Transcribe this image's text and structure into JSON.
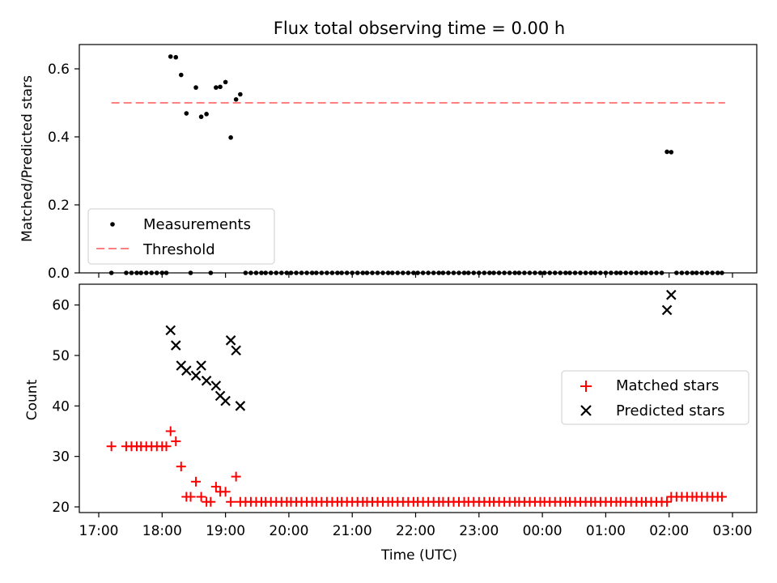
{
  "figure": {
    "title": "Flux total observing time = 0.00 h"
  },
  "chart_data": [
    {
      "type": "scatter",
      "title": "Flux total observing time = 0.00 h",
      "xlabel": "",
      "ylabel": "Matched/Predicted stars",
      "xlim": [
        "16:53",
        "03:22"
      ],
      "ylim": [
        0,
        0.66
      ],
      "yticks": [
        0.0,
        0.2,
        0.4,
        0.6
      ],
      "ytick_labels": [
        "0.0",
        "0.2",
        "0.4",
        "0.6"
      ],
      "legend": {
        "placement": "lower-left",
        "entries": [
          {
            "label": "Measurements",
            "marker": "dot",
            "color": "#000000"
          },
          {
            "label": "Threshold",
            "style": "dashed",
            "color": "#ff8080"
          }
        ]
      },
      "threshold": {
        "name": "Threshold",
        "value": 0.5,
        "x_start": "17:12",
        "x_end": "02:53",
        "color": "#ff8080"
      },
      "series": [
        {
          "name": "Measurements",
          "color": "#000000",
          "points": [
            {
              "x": "18:08",
              "y": 0.636
            },
            {
              "x": "18:13",
              "y": 0.634
            },
            {
              "x": "18:18",
              "y": 0.582
            },
            {
              "x": "18:23",
              "y": 0.469
            },
            {
              "x": "18:32",
              "y": 0.545
            },
            {
              "x": "18:37",
              "y": 0.459
            },
            {
              "x": "18:42",
              "y": 0.467
            },
            {
              "x": "18:51",
              "y": 0.545
            },
            {
              "x": "18:55",
              "y": 0.547
            },
            {
              "x": "19:00",
              "y": 0.561
            },
            {
              "x": "19:05",
              "y": 0.398
            },
            {
              "x": "19:10",
              "y": 0.51
            },
            {
              "x": "19:14",
              "y": 0.525
            },
            {
              "x": "01:58",
              "y": 0.356
            },
            {
              "x": "02:02",
              "y": 0.355
            }
          ],
          "zero_points_x": [
            "17:12",
            "17:26",
            "17:31",
            "17:36",
            "17:40",
            "17:45",
            "17:50",
            "17:55",
            "18:00",
            "18:04",
            "18:27",
            "18:46",
            "19:19",
            "19:24",
            "19:29",
            "19:34",
            "19:38",
            "19:43",
            "19:48",
            "19:53",
            "19:58",
            "20:02",
            "20:07",
            "20:12",
            "20:17",
            "20:22",
            "20:26",
            "20:31",
            "20:36",
            "20:41",
            "20:46",
            "20:50",
            "20:55",
            "21:00",
            "21:05",
            "21:10",
            "21:14",
            "21:19",
            "21:24",
            "21:29",
            "21:34",
            "21:38",
            "21:43",
            "21:48",
            "21:53",
            "21:58",
            "22:02",
            "22:07",
            "22:12",
            "22:17",
            "22:22",
            "22:26",
            "22:31",
            "22:36",
            "22:41",
            "22:46",
            "22:50",
            "22:55",
            "23:00",
            "23:05",
            "23:10",
            "23:14",
            "23:19",
            "23:24",
            "23:29",
            "23:34",
            "23:38",
            "23:43",
            "23:48",
            "23:53",
            "23:58",
            "00:02",
            "00:07",
            "00:12",
            "00:17",
            "00:22",
            "00:26",
            "00:31",
            "00:36",
            "00:41",
            "00:46",
            "00:50",
            "00:55",
            "01:00",
            "01:05",
            "01:10",
            "01:14",
            "01:19",
            "01:24",
            "01:29",
            "01:34",
            "01:38",
            "01:43",
            "01:48",
            "01:53",
            "02:07",
            "02:12",
            "02:17",
            "02:22",
            "02:26",
            "02:31",
            "02:36",
            "02:41",
            "02:46",
            "02:50"
          ]
        }
      ]
    },
    {
      "type": "scatter",
      "xlabel": "Time (UTC)",
      "ylabel": "Count",
      "xlim": [
        "16:53",
        "03:22"
      ],
      "ylim": [
        19,
        64
      ],
      "xticks": [
        "17:00",
        "18:00",
        "19:00",
        "20:00",
        "21:00",
        "22:00",
        "23:00",
        "00:00",
        "01:00",
        "02:00",
        "03:00"
      ],
      "yticks": [
        20,
        30,
        40,
        50,
        60
      ],
      "ytick_labels": [
        "20",
        "30",
        "40",
        "50",
        "60"
      ],
      "legend": {
        "placement": "center-right",
        "entries": [
          {
            "label": "Matched stars",
            "marker": "+",
            "color": "#ff0000"
          },
          {
            "label": "Predicted stars",
            "marker": "x",
            "color": "#000000"
          }
        ]
      },
      "series": [
        {
          "name": "Matched stars",
          "marker": "+",
          "color": "#ff0000",
          "points": [
            {
              "x": "17:12",
              "y": 32
            },
            {
              "x": "17:26",
              "y": 32
            },
            {
              "x": "17:31",
              "y": 32
            },
            {
              "x": "17:36",
              "y": 32
            },
            {
              "x": "17:40",
              "y": 32
            },
            {
              "x": "17:45",
              "y": 32
            },
            {
              "x": "17:50",
              "y": 32
            },
            {
              "x": "17:55",
              "y": 32
            },
            {
              "x": "18:00",
              "y": 32
            },
            {
              "x": "18:04",
              "y": 32
            },
            {
              "x": "18:08",
              "y": 35
            },
            {
              "x": "18:13",
              "y": 33
            },
            {
              "x": "18:18",
              "y": 28
            },
            {
              "x": "18:23",
              "y": 22
            },
            {
              "x": "18:27",
              "y": 22
            },
            {
              "x": "18:32",
              "y": 25
            },
            {
              "x": "18:37",
              "y": 22
            },
            {
              "x": "18:42",
              "y": 21
            },
            {
              "x": "18:46",
              "y": 21
            },
            {
              "x": "18:51",
              "y": 24
            },
            {
              "x": "18:55",
              "y": 23
            },
            {
              "x": "19:00",
              "y": 23
            },
            {
              "x": "19:05",
              "y": 21
            },
            {
              "x": "19:10",
              "y": 26
            },
            {
              "x": "19:14",
              "y": 21
            },
            {
              "x": "19:19",
              "y": 21
            },
            {
              "x": "19:24",
              "y": 21
            },
            {
              "x": "19:29",
              "y": 21
            },
            {
              "x": "19:34",
              "y": 21
            },
            {
              "x": "19:38",
              "y": 21
            },
            {
              "x": "19:43",
              "y": 21
            },
            {
              "x": "19:48",
              "y": 21
            },
            {
              "x": "19:53",
              "y": 21
            },
            {
              "x": "19:58",
              "y": 21
            },
            {
              "x": "20:02",
              "y": 21
            },
            {
              "x": "20:07",
              "y": 21
            },
            {
              "x": "20:12",
              "y": 21
            },
            {
              "x": "20:17",
              "y": 21
            },
            {
              "x": "20:22",
              "y": 21
            },
            {
              "x": "20:26",
              "y": 21
            },
            {
              "x": "20:31",
              "y": 21
            },
            {
              "x": "20:36",
              "y": 21
            },
            {
              "x": "20:41",
              "y": 21
            },
            {
              "x": "20:46",
              "y": 21
            },
            {
              "x": "20:50",
              "y": 21
            },
            {
              "x": "20:55",
              "y": 21
            },
            {
              "x": "21:00",
              "y": 21
            },
            {
              "x": "21:05",
              "y": 21
            },
            {
              "x": "21:10",
              "y": 21
            },
            {
              "x": "21:14",
              "y": 21
            },
            {
              "x": "21:19",
              "y": 21
            },
            {
              "x": "21:24",
              "y": 21
            },
            {
              "x": "21:29",
              "y": 21
            },
            {
              "x": "21:34",
              "y": 21
            },
            {
              "x": "21:38",
              "y": 21
            },
            {
              "x": "21:43",
              "y": 21
            },
            {
              "x": "21:48",
              "y": 21
            },
            {
              "x": "21:53",
              "y": 21
            },
            {
              "x": "21:58",
              "y": 21
            },
            {
              "x": "22:02",
              "y": 21
            },
            {
              "x": "22:07",
              "y": 21
            },
            {
              "x": "22:12",
              "y": 21
            },
            {
              "x": "22:17",
              "y": 21
            },
            {
              "x": "22:22",
              "y": 21
            },
            {
              "x": "22:26",
              "y": 21
            },
            {
              "x": "22:31",
              "y": 21
            },
            {
              "x": "22:36",
              "y": 21
            },
            {
              "x": "22:41",
              "y": 21
            },
            {
              "x": "22:46",
              "y": 21
            },
            {
              "x": "22:50",
              "y": 21
            },
            {
              "x": "22:55",
              "y": 21
            },
            {
              "x": "23:00",
              "y": 21
            },
            {
              "x": "23:05",
              "y": 21
            },
            {
              "x": "23:10",
              "y": 21
            },
            {
              "x": "23:14",
              "y": 21
            },
            {
              "x": "23:19",
              "y": 21
            },
            {
              "x": "23:24",
              "y": 21
            },
            {
              "x": "23:29",
              "y": 21
            },
            {
              "x": "23:34",
              "y": 21
            },
            {
              "x": "23:38",
              "y": 21
            },
            {
              "x": "23:43",
              "y": 21
            },
            {
              "x": "23:48",
              "y": 21
            },
            {
              "x": "23:53",
              "y": 21
            },
            {
              "x": "23:58",
              "y": 21
            },
            {
              "x": "00:02",
              "y": 21
            },
            {
              "x": "00:07",
              "y": 21
            },
            {
              "x": "00:12",
              "y": 21
            },
            {
              "x": "00:17",
              "y": 21
            },
            {
              "x": "00:22",
              "y": 21
            },
            {
              "x": "00:26",
              "y": 21
            },
            {
              "x": "00:31",
              "y": 21
            },
            {
              "x": "00:36",
              "y": 21
            },
            {
              "x": "00:41",
              "y": 21
            },
            {
              "x": "00:46",
              "y": 21
            },
            {
              "x": "00:50",
              "y": 21
            },
            {
              "x": "00:55",
              "y": 21
            },
            {
              "x": "01:00",
              "y": 21
            },
            {
              "x": "01:05",
              "y": 21
            },
            {
              "x": "01:10",
              "y": 21
            },
            {
              "x": "01:14",
              "y": 21
            },
            {
              "x": "01:19",
              "y": 21
            },
            {
              "x": "01:24",
              "y": 21
            },
            {
              "x": "01:29",
              "y": 21
            },
            {
              "x": "01:34",
              "y": 21
            },
            {
              "x": "01:38",
              "y": 21
            },
            {
              "x": "01:43",
              "y": 21
            },
            {
              "x": "01:48",
              "y": 21
            },
            {
              "x": "01:53",
              "y": 21
            },
            {
              "x": "01:58",
              "y": 21
            },
            {
              "x": "02:02",
              "y": 22
            },
            {
              "x": "02:07",
              "y": 22
            },
            {
              "x": "02:12",
              "y": 22
            },
            {
              "x": "02:17",
              "y": 22
            },
            {
              "x": "02:22",
              "y": 22
            },
            {
              "x": "02:26",
              "y": 22
            },
            {
              "x": "02:31",
              "y": 22
            },
            {
              "x": "02:36",
              "y": 22
            },
            {
              "x": "02:41",
              "y": 22
            },
            {
              "x": "02:46",
              "y": 22
            },
            {
              "x": "02:50",
              "y": 22
            }
          ]
        },
        {
          "name": "Predicted stars",
          "marker": "x",
          "color": "#000000",
          "points": [
            {
              "x": "18:08",
              "y": 55
            },
            {
              "x": "18:13",
              "y": 52
            },
            {
              "x": "18:18",
              "y": 48
            },
            {
              "x": "18:23",
              "y": 47
            },
            {
              "x": "18:32",
              "y": 46
            },
            {
              "x": "18:37",
              "y": 48
            },
            {
              "x": "18:42",
              "y": 45
            },
            {
              "x": "18:51",
              "y": 44
            },
            {
              "x": "18:55",
              "y": 42
            },
            {
              "x": "19:00",
              "y": 41
            },
            {
              "x": "19:05",
              "y": 53
            },
            {
              "x": "19:10",
              "y": 51
            },
            {
              "x": "19:14",
              "y": 40
            },
            {
              "x": "01:58",
              "y": 59
            },
            {
              "x": "02:02",
              "y": 62
            }
          ]
        }
      ]
    }
  ]
}
